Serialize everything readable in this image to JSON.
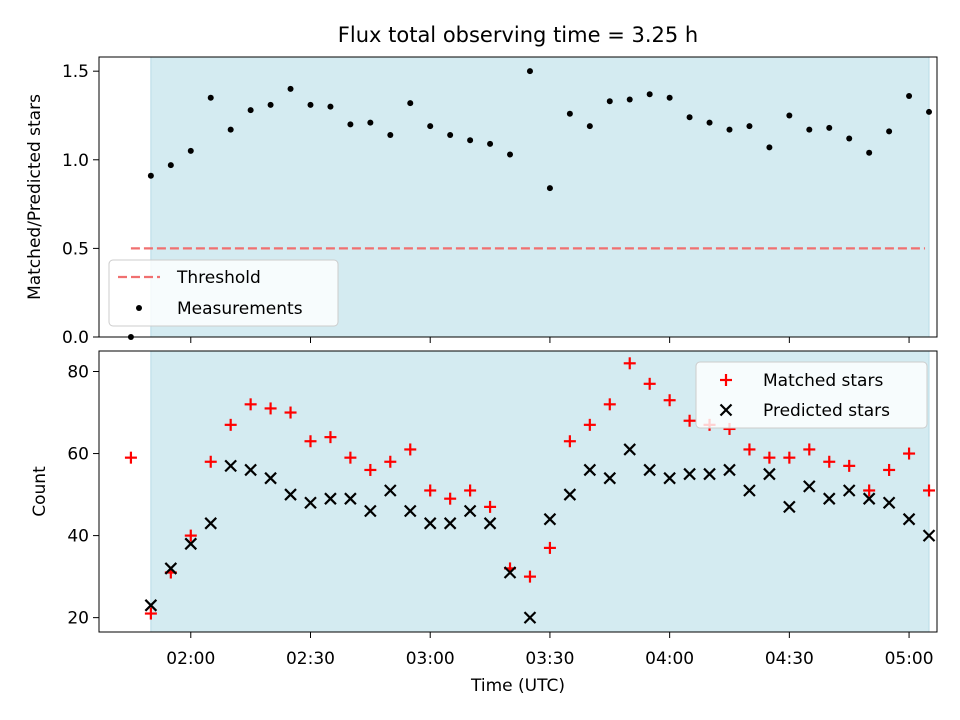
{
  "chart_data": [
    {
      "type": "scatter",
      "title": "Flux total observing time = 3.25 h",
      "ylabel": "Matched/Predicted stars",
      "xlabel": "",
      "ylim": [
        0,
        1.58
      ],
      "yticks": [
        "0.0",
        "0.5",
        "1.0",
        "1.5"
      ],
      "ytick_values": [
        0,
        0.5,
        1.0,
        1.5
      ],
      "legend_position": "lower-left",
      "shaded_span": [
        "01:50",
        "05:05"
      ],
      "threshold": {
        "name": "Threshold",
        "value": 0.5,
        "x_range": [
          "01:45",
          "05:04"
        ],
        "color": "#f07070"
      },
      "series": [
        {
          "name": "Measurements",
          "marker": "dot",
          "color": "#000000",
          "x": [
            "01:45",
            "01:50",
            "01:55",
            "02:00",
            "02:05",
            "02:10",
            "02:15",
            "02:20",
            "02:25",
            "02:30",
            "02:35",
            "02:40",
            "02:45",
            "02:50",
            "02:55",
            "03:00",
            "03:05",
            "03:10",
            "03:15",
            "03:20",
            "03:25",
            "03:30",
            "03:35",
            "03:40",
            "03:45",
            "03:50",
            "03:55",
            "04:00",
            "04:05",
            "04:10",
            "04:15",
            "04:20",
            "04:25",
            "04:30",
            "04:35",
            "04:40",
            "04:45",
            "04:50",
            "04:55",
            "05:00",
            "05:05"
          ],
          "values": [
            0.0,
            0.91,
            0.97,
            1.05,
            1.35,
            1.17,
            1.28,
            1.31,
            1.4,
            1.31,
            1.3,
            1.2,
            1.21,
            1.14,
            1.32,
            1.19,
            1.14,
            1.11,
            1.09,
            1.03,
            1.5,
            0.84,
            1.26,
            1.19,
            1.33,
            1.34,
            1.37,
            1.35,
            1.24,
            1.21,
            1.17,
            1.19,
            1.07,
            1.25,
            1.17,
            1.18,
            1.12,
            1.04,
            1.16,
            1.36,
            1.27
          ]
        }
      ]
    },
    {
      "type": "scatter",
      "title": "",
      "xlabel": "Time (UTC)",
      "ylabel": "Count",
      "ylim": [
        16.5,
        85
      ],
      "yticks": [
        "20",
        "40",
        "60",
        "80"
      ],
      "ytick_values": [
        20,
        40,
        60,
        80
      ],
      "xticks": [
        "02:00",
        "02:30",
        "03:00",
        "03:30",
        "04:00",
        "04:30",
        "05:00"
      ],
      "xlim": [
        "01:37",
        "05:07"
      ],
      "legend_position": "upper-right",
      "shaded_span": [
        "01:50",
        "05:05"
      ],
      "x": [
        "01:45",
        "01:50",
        "01:55",
        "02:00",
        "02:05",
        "02:10",
        "02:15",
        "02:20",
        "02:25",
        "02:30",
        "02:35",
        "02:40",
        "02:45",
        "02:50",
        "02:55",
        "03:00",
        "03:05",
        "03:10",
        "03:15",
        "03:20",
        "03:25",
        "03:30",
        "03:35",
        "03:40",
        "03:45",
        "03:50",
        "03:55",
        "04:00",
        "04:05",
        "04:10",
        "04:15",
        "04:20",
        "04:25",
        "04:30",
        "04:35",
        "04:40",
        "04:45",
        "04:50",
        "04:55",
        "05:00",
        "05:05"
      ],
      "series": [
        {
          "name": "Matched stars",
          "marker": "plus",
          "color": "#ff0000",
          "values": [
            59,
            21,
            31,
            40,
            58,
            67,
            72,
            71,
            70,
            63,
            64,
            59,
            56,
            58,
            61,
            51,
            49,
            51,
            47,
            32,
            30,
            37,
            63,
            67,
            72,
            82,
            77,
            73,
            68,
            67,
            66,
            61,
            59,
            59,
            61,
            58,
            57,
            51,
            56,
            60,
            51
          ]
        },
        {
          "name": "Predicted stars",
          "marker": "x",
          "color": "#000000",
          "values": [
            null,
            23,
            32,
            38,
            43,
            57,
            56,
            54,
            50,
            48,
            49,
            49,
            46,
            51,
            46,
            43,
            43,
            46,
            43,
            31,
            20,
            44,
            50,
            56,
            54,
            61,
            56,
            54,
            55,
            55,
            56,
            51,
            55,
            47,
            52,
            49,
            51,
            49,
            48,
            44,
            40
          ]
        }
      ]
    }
  ],
  "colors": {
    "shade": "#d4ebf1",
    "shade_edge": "#b6dbe6"
  }
}
